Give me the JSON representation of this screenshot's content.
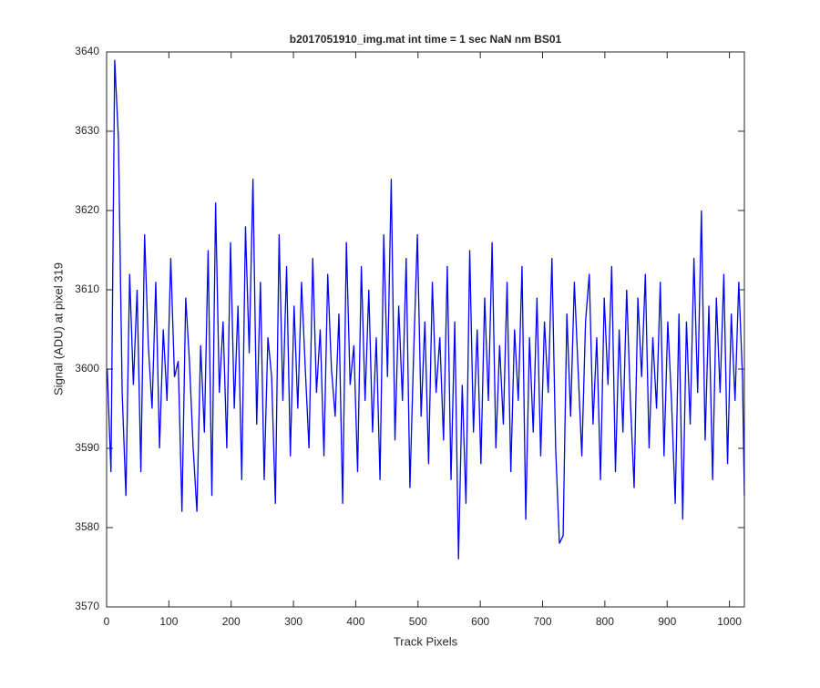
{
  "chart_data": {
    "type": "line",
    "title": "b2017051910_img.mat int time = 1 sec  NaN nm BS01",
    "x_label": "Track Pixels",
    "y_label": "Signal (ADU) at pixel 319",
    "xlim": [
      0,
      1024
    ],
    "ylim": [
      3570,
      3640
    ],
    "xticks": [
      0,
      100,
      200,
      300,
      400,
      500,
      600,
      700,
      800,
      900,
      1000
    ],
    "yticks": [
      3570,
      3580,
      3590,
      3600,
      3610,
      3620,
      3630,
      3640
    ],
    "grid": false,
    "x": [
      1,
      7,
      13,
      19,
      25,
      31,
      37,
      43,
      49,
      55,
      61,
      67,
      73,
      79,
      85,
      91,
      97,
      103,
      109,
      115,
      121,
      127,
      133,
      139,
      145,
      151,
      157,
      163,
      169,
      175,
      181,
      187,
      193,
      199,
      205,
      211,
      217,
      223,
      229,
      235,
      241,
      247,
      253,
      259,
      265,
      271,
      277,
      283,
      289,
      295,
      301,
      307,
      313,
      319,
      325,
      331,
      337,
      343,
      349,
      355,
      361,
      367,
      373,
      379,
      385,
      391,
      397,
      403,
      409,
      415,
      421,
      427,
      433,
      439,
      445,
      451,
      457,
      463,
      469,
      475,
      481,
      487,
      493,
      499,
      505,
      511,
      517,
      523,
      529,
      535,
      541,
      547,
      553,
      559,
      565,
      571,
      577,
      583,
      589,
      595,
      601,
      607,
      613,
      619,
      625,
      631,
      637,
      643,
      649,
      655,
      661,
      667,
      673,
      679,
      685,
      691,
      697,
      703,
      709,
      715,
      721,
      727,
      733,
      739,
      745,
      751,
      757,
      763,
      769,
      775,
      781,
      787,
      793,
      799,
      805,
      811,
      817,
      823,
      829,
      835,
      841,
      847,
      853,
      859,
      865,
      871,
      877,
      883,
      889,
      895,
      901,
      907,
      913,
      919,
      925,
      931,
      937,
      943,
      949,
      955,
      961,
      967,
      973,
      979,
      985,
      991,
      997,
      1003,
      1009,
      1015,
      1021,
      1024
    ],
    "series": [
      {
        "name": "signal",
        "color": "#0000ff",
        "values": [
          3600,
          3587,
          3639,
          3629,
          3597,
          3584,
          3612,
          3598,
          3610,
          3587,
          3617,
          3603,
          3595,
          3611,
          3590,
          3605,
          3596,
          3614,
          3599,
          3601,
          3582,
          3609,
          3601,
          3590,
          3582,
          3603,
          3592,
          3615,
          3584,
          3621,
          3597,
          3606,
          3590,
          3616,
          3595,
          3608,
          3586,
          3618,
          3602,
          3624,
          3593,
          3611,
          3586,
          3604,
          3599,
          3583,
          3617,
          3596,
          3613,
          3589,
          3608,
          3595,
          3611,
          3600,
          3590,
          3614,
          3597,
          3605,
          3589,
          3612,
          3600,
          3594,
          3607,
          3583,
          3616,
          3598,
          3603,
          3587,
          3613,
          3596,
          3610,
          3592,
          3604,
          3586,
          3617,
          3599,
          3624,
          3591,
          3608,
          3596,
          3614,
          3585,
          3602,
          3617,
          3594,
          3606,
          3588,
          3611,
          3597,
          3604,
          3591,
          3613,
          3586,
          3606,
          3576,
          3598,
          3583,
          3615,
          3592,
          3605,
          3588,
          3609,
          3596,
          3616,
          3590,
          3603,
          3593,
          3611,
          3587,
          3605,
          3596,
          3613,
          3581,
          3604,
          3592,
          3609,
          3589,
          3606,
          3597,
          3614,
          3590,
          3578,
          3579,
          3607,
          3594,
          3611,
          3600,
          3589,
          3606,
          3612,
          3593,
          3604,
          3586,
          3609,
          3598,
          3613,
          3587,
          3605,
          3592,
          3610,
          3596,
          3585,
          3609,
          3599,
          3612,
          3590,
          3604,
          3595,
          3611,
          3589,
          3606,
          3596,
          3583,
          3607,
          3581,
          3606,
          3593,
          3614,
          3597,
          3620,
          3591,
          3608,
          3586,
          3609,
          3597,
          3612,
          3588,
          3607,
          3596,
          3611,
          3599,
          3584
        ]
      }
    ]
  }
}
